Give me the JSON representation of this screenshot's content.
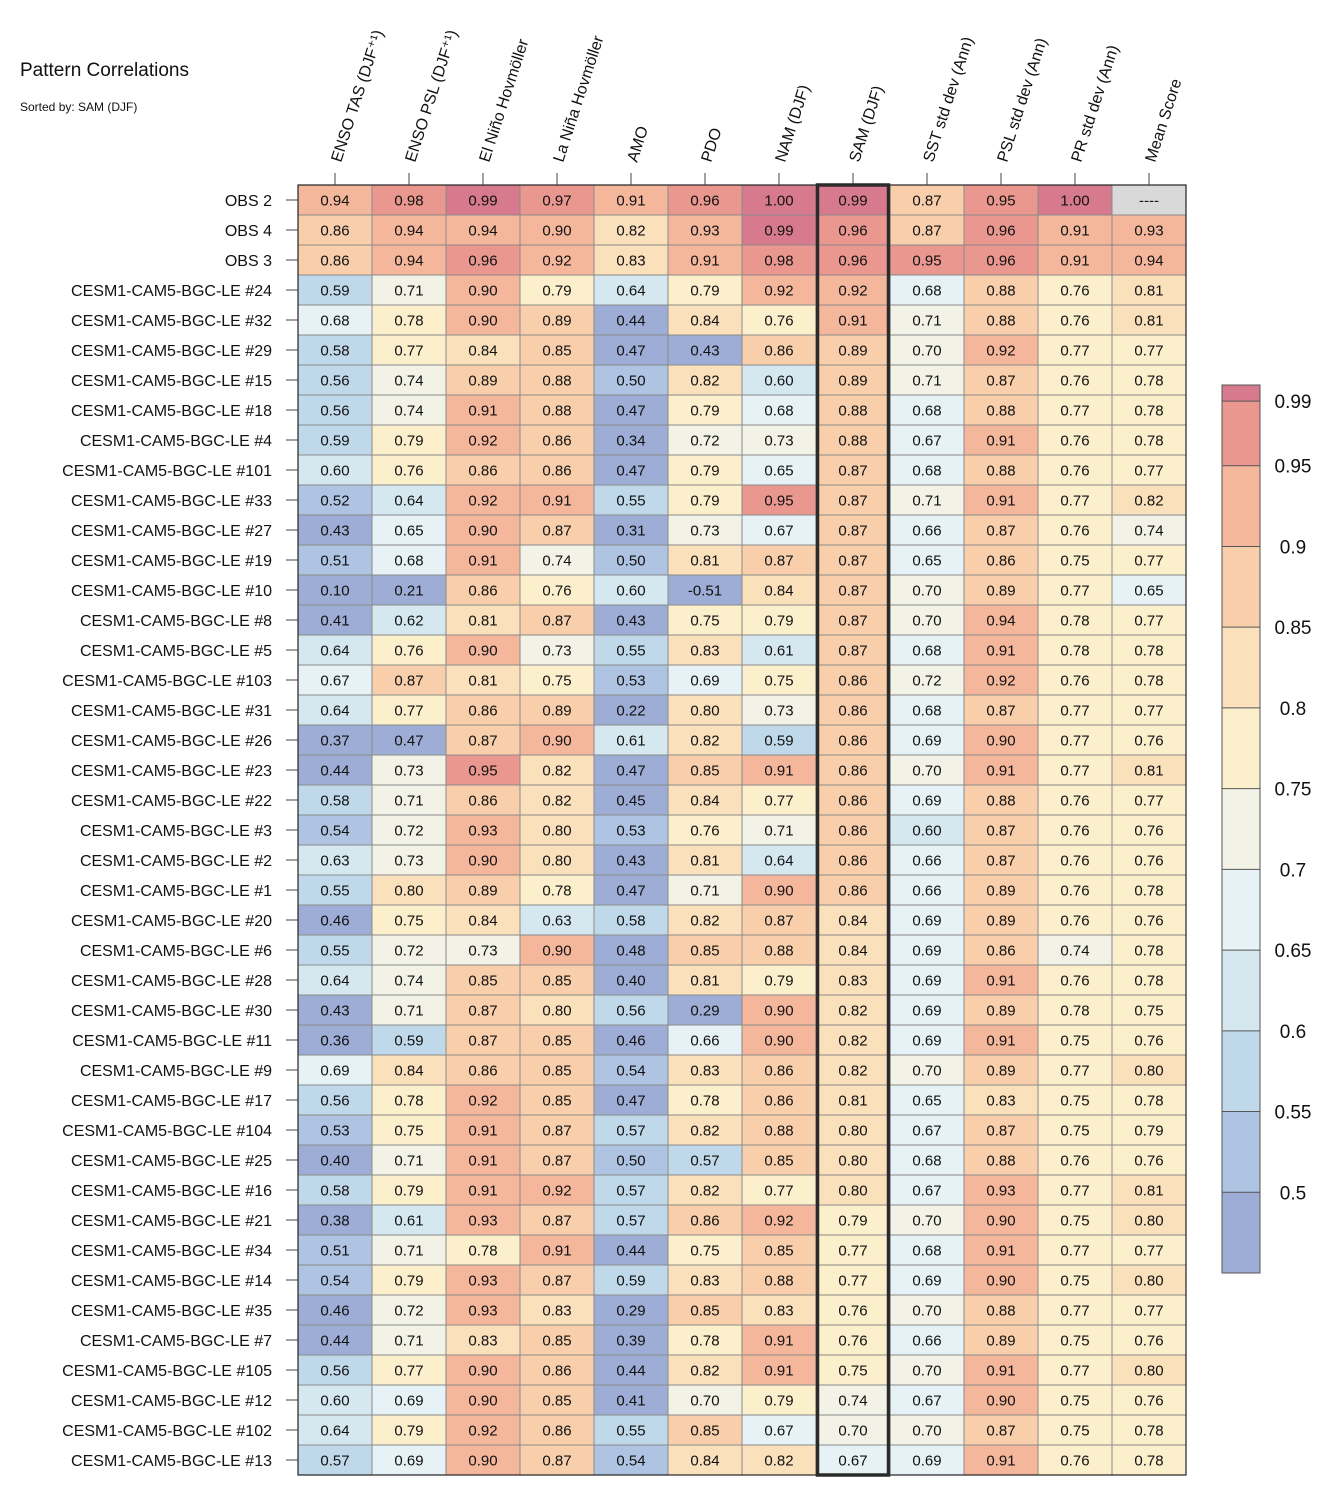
{
  "title": "Pattern Correlations",
  "subtitle": "Sorted by: SAM (DJF)",
  "chart_data": {
    "type": "heatmap",
    "title": "Pattern Correlations",
    "subtitle": "Sorted by: SAM (DJF)",
    "columns": [
      "ENSO TAS (DJF⁺¹)",
      "ENSO PSL (DJF⁺¹)",
      "El Niño Hovmöller",
      "La Niña Hovmöller",
      "AMO",
      "PDO",
      "NAM (DJF)",
      "SAM (DJF)",
      "SST std dev (Ann)",
      "PSL std dev (Ann)",
      "PR std dev (Ann)",
      "Mean Score"
    ],
    "highlighted_column": "SAM (DJF)",
    "missing_label": "----",
    "rows": [
      "OBS 2",
      "OBS 4",
      "OBS 3",
      "CESM1-CAM5-BGC-LE #24",
      "CESM1-CAM5-BGC-LE #32",
      "CESM1-CAM5-BGC-LE #29",
      "CESM1-CAM5-BGC-LE #15",
      "CESM1-CAM5-BGC-LE #18",
      "CESM1-CAM5-BGC-LE #4",
      "CESM1-CAM5-BGC-LE #101",
      "CESM1-CAM5-BGC-LE #33",
      "CESM1-CAM5-BGC-LE #27",
      "CESM1-CAM5-BGC-LE #19",
      "CESM1-CAM5-BGC-LE #10",
      "CESM1-CAM5-BGC-LE #8",
      "CESM1-CAM5-BGC-LE #5",
      "CESM1-CAM5-BGC-LE #103",
      "CESM1-CAM5-BGC-LE #31",
      "CESM1-CAM5-BGC-LE #26",
      "CESM1-CAM5-BGC-LE #23",
      "CESM1-CAM5-BGC-LE #22",
      "CESM1-CAM5-BGC-LE #3",
      "CESM1-CAM5-BGC-LE #2",
      "CESM1-CAM5-BGC-LE #1",
      "CESM1-CAM5-BGC-LE #20",
      "CESM1-CAM5-BGC-LE #6",
      "CESM1-CAM5-BGC-LE #28",
      "CESM1-CAM5-BGC-LE #30",
      "CESM1-CAM5-BGC-LE #11",
      "CESM1-CAM5-BGC-LE #9",
      "CESM1-CAM5-BGC-LE #17",
      "CESM1-CAM5-BGC-LE #104",
      "CESM1-CAM5-BGC-LE #25",
      "CESM1-CAM5-BGC-LE #16",
      "CESM1-CAM5-BGC-LE #21",
      "CESM1-CAM5-BGC-LE #34",
      "CESM1-CAM5-BGC-LE #14",
      "CESM1-CAM5-BGC-LE #35",
      "CESM1-CAM5-BGC-LE #7",
      "CESM1-CAM5-BGC-LE #105",
      "CESM1-CAM5-BGC-LE #12",
      "CESM1-CAM5-BGC-LE #102",
      "CESM1-CAM5-BGC-LE #13"
    ],
    "values": [
      [
        "0.94",
        "0.98",
        "0.99",
        "0.97",
        "0.91",
        "0.96",
        "1.00",
        "0.99",
        "0.87",
        "0.95",
        "1.00",
        null
      ],
      [
        "0.86",
        "0.94",
        "0.94",
        "0.90",
        "0.82",
        "0.93",
        "0.99",
        "0.96",
        "0.87",
        "0.96",
        "0.91",
        "0.93"
      ],
      [
        "0.86",
        "0.94",
        "0.96",
        "0.92",
        "0.83",
        "0.91",
        "0.98",
        "0.96",
        "0.95",
        "0.96",
        "0.91",
        "0.94"
      ],
      [
        "0.59",
        "0.71",
        "0.90",
        "0.79",
        "0.64",
        "0.79",
        "0.92",
        "0.92",
        "0.68",
        "0.88",
        "0.76",
        "0.81"
      ],
      [
        "0.68",
        "0.78",
        "0.90",
        "0.89",
        "0.44",
        "0.84",
        "0.76",
        "0.91",
        "0.71",
        "0.88",
        "0.76",
        "0.81"
      ],
      [
        "0.58",
        "0.77",
        "0.84",
        "0.85",
        "0.47",
        "0.43",
        "0.86",
        "0.89",
        "0.70",
        "0.92",
        "0.77",
        "0.77"
      ],
      [
        "0.56",
        "0.74",
        "0.89",
        "0.88",
        "0.50",
        "0.82",
        "0.60",
        "0.89",
        "0.71",
        "0.87",
        "0.76",
        "0.78"
      ],
      [
        "0.56",
        "0.74",
        "0.91",
        "0.88",
        "0.47",
        "0.79",
        "0.68",
        "0.88",
        "0.68",
        "0.88",
        "0.77",
        "0.78"
      ],
      [
        "0.59",
        "0.79",
        "0.92",
        "0.86",
        "0.34",
        "0.72",
        "0.73",
        "0.88",
        "0.67",
        "0.91",
        "0.76",
        "0.78"
      ],
      [
        "0.60",
        "0.76",
        "0.86",
        "0.86",
        "0.47",
        "0.79",
        "0.65",
        "0.87",
        "0.68",
        "0.88",
        "0.76",
        "0.77"
      ],
      [
        "0.52",
        "0.64",
        "0.92",
        "0.91",
        "0.55",
        "0.79",
        "0.95",
        "0.87",
        "0.71",
        "0.91",
        "0.77",
        "0.82"
      ],
      [
        "0.43",
        "0.65",
        "0.90",
        "0.87",
        "0.31",
        "0.73",
        "0.67",
        "0.87",
        "0.66",
        "0.87",
        "0.76",
        "0.74"
      ],
      [
        "0.51",
        "0.68",
        "0.91",
        "0.74",
        "0.50",
        "0.81",
        "0.87",
        "0.87",
        "0.65",
        "0.86",
        "0.75",
        "0.77"
      ],
      [
        "0.10",
        "0.21",
        "0.86",
        "0.76",
        "0.60",
        "-0.51",
        "0.84",
        "0.87",
        "0.70",
        "0.89",
        "0.77",
        "0.65"
      ],
      [
        "0.41",
        "0.62",
        "0.81",
        "0.87",
        "0.43",
        "0.75",
        "0.79",
        "0.87",
        "0.70",
        "0.94",
        "0.78",
        "0.77"
      ],
      [
        "0.64",
        "0.76",
        "0.90",
        "0.73",
        "0.55",
        "0.83",
        "0.61",
        "0.87",
        "0.68",
        "0.91",
        "0.78",
        "0.78"
      ],
      [
        "0.67",
        "0.87",
        "0.81",
        "0.75",
        "0.53",
        "0.69",
        "0.75",
        "0.86",
        "0.72",
        "0.92",
        "0.76",
        "0.78"
      ],
      [
        "0.64",
        "0.77",
        "0.86",
        "0.89",
        "0.22",
        "0.80",
        "0.73",
        "0.86",
        "0.68",
        "0.87",
        "0.77",
        "0.77"
      ],
      [
        "0.37",
        "0.47",
        "0.87",
        "0.90",
        "0.61",
        "0.82",
        "0.59",
        "0.86",
        "0.69",
        "0.90",
        "0.77",
        "0.76"
      ],
      [
        "0.44",
        "0.73",
        "0.95",
        "0.82",
        "0.47",
        "0.85",
        "0.91",
        "0.86",
        "0.70",
        "0.91",
        "0.77",
        "0.81"
      ],
      [
        "0.58",
        "0.71",
        "0.86",
        "0.82",
        "0.45",
        "0.84",
        "0.77",
        "0.86",
        "0.69",
        "0.88",
        "0.76",
        "0.77"
      ],
      [
        "0.54",
        "0.72",
        "0.93",
        "0.80",
        "0.53",
        "0.76",
        "0.71",
        "0.86",
        "0.60",
        "0.87",
        "0.76",
        "0.76"
      ],
      [
        "0.63",
        "0.73",
        "0.90",
        "0.80",
        "0.43",
        "0.81",
        "0.64",
        "0.86",
        "0.66",
        "0.87",
        "0.76",
        "0.76"
      ],
      [
        "0.55",
        "0.80",
        "0.89",
        "0.78",
        "0.47",
        "0.71",
        "0.90",
        "0.86",
        "0.66",
        "0.89",
        "0.76",
        "0.78"
      ],
      [
        "0.46",
        "0.75",
        "0.84",
        "0.63",
        "0.58",
        "0.82",
        "0.87",
        "0.84",
        "0.69",
        "0.89",
        "0.76",
        "0.76"
      ],
      [
        "0.55",
        "0.72",
        "0.73",
        "0.90",
        "0.48",
        "0.85",
        "0.88",
        "0.84",
        "0.69",
        "0.86",
        "0.74",
        "0.78"
      ],
      [
        "0.64",
        "0.74",
        "0.85",
        "0.85",
        "0.40",
        "0.81",
        "0.79",
        "0.83",
        "0.69",
        "0.91",
        "0.76",
        "0.78"
      ],
      [
        "0.43",
        "0.71",
        "0.87",
        "0.80",
        "0.56",
        "0.29",
        "0.90",
        "0.82",
        "0.69",
        "0.89",
        "0.78",
        "0.75"
      ],
      [
        "0.36",
        "0.59",
        "0.87",
        "0.85",
        "0.46",
        "0.66",
        "0.90",
        "0.82",
        "0.69",
        "0.91",
        "0.75",
        "0.76"
      ],
      [
        "0.69",
        "0.84",
        "0.86",
        "0.85",
        "0.54",
        "0.83",
        "0.86",
        "0.82",
        "0.70",
        "0.89",
        "0.77",
        "0.80"
      ],
      [
        "0.56",
        "0.78",
        "0.92",
        "0.85",
        "0.47",
        "0.78",
        "0.86",
        "0.81",
        "0.65",
        "0.83",
        "0.75",
        "0.78"
      ],
      [
        "0.53",
        "0.75",
        "0.91",
        "0.87",
        "0.57",
        "0.82",
        "0.88",
        "0.80",
        "0.67",
        "0.87",
        "0.75",
        "0.79"
      ],
      [
        "0.40",
        "0.71",
        "0.91",
        "0.87",
        "0.50",
        "0.57",
        "0.85",
        "0.80",
        "0.68",
        "0.88",
        "0.76",
        "0.76"
      ],
      [
        "0.58",
        "0.79",
        "0.91",
        "0.92",
        "0.57",
        "0.82",
        "0.77",
        "0.80",
        "0.67",
        "0.93",
        "0.77",
        "0.81"
      ],
      [
        "0.38",
        "0.61",
        "0.93",
        "0.87",
        "0.57",
        "0.86",
        "0.92",
        "0.79",
        "0.70",
        "0.90",
        "0.75",
        "0.80"
      ],
      [
        "0.51",
        "0.71",
        "0.78",
        "0.91",
        "0.44",
        "0.75",
        "0.85",
        "0.77",
        "0.68",
        "0.91",
        "0.77",
        "0.77"
      ],
      [
        "0.54",
        "0.79",
        "0.93",
        "0.87",
        "0.59",
        "0.83",
        "0.88",
        "0.77",
        "0.69",
        "0.90",
        "0.75",
        "0.80"
      ],
      [
        "0.46",
        "0.72",
        "0.93",
        "0.83",
        "0.29",
        "0.85",
        "0.83",
        "0.76",
        "0.70",
        "0.88",
        "0.77",
        "0.77"
      ],
      [
        "0.44",
        "0.71",
        "0.83",
        "0.85",
        "0.39",
        "0.78",
        "0.91",
        "0.76",
        "0.66",
        "0.89",
        "0.75",
        "0.76"
      ],
      [
        "0.56",
        "0.77",
        "0.90",
        "0.86",
        "0.44",
        "0.82",
        "0.91",
        "0.75",
        "0.70",
        "0.91",
        "0.77",
        "0.80"
      ],
      [
        "0.60",
        "0.69",
        "0.90",
        "0.85",
        "0.41",
        "0.70",
        "0.79",
        "0.74",
        "0.67",
        "0.90",
        "0.75",
        "0.76"
      ],
      [
        "0.64",
        "0.79",
        "0.92",
        "0.86",
        "0.55",
        "0.85",
        "0.67",
        "0.70",
        "0.70",
        "0.87",
        "0.75",
        "0.78"
      ],
      [
        "0.57",
        "0.69",
        "0.90",
        "0.87",
        "0.54",
        "0.84",
        "0.82",
        "0.67",
        "0.69",
        "0.91",
        "0.76",
        "0.78"
      ]
    ],
    "colorbar": {
      "bounds": [
        0.45,
        0.5,
        0.55,
        0.6,
        0.65,
        0.7,
        0.75,
        0.8,
        0.85,
        0.9,
        0.95,
        0.99,
        1.0
      ],
      "tick_labels": [
        "0.5",
        "0.55",
        "0.6",
        "0.65",
        "0.7",
        "0.75",
        "0.8",
        "0.85",
        "0.9",
        "0.95",
        "0.99"
      ],
      "tick_values": [
        0.5,
        0.55,
        0.6,
        0.65,
        0.7,
        0.75,
        0.8,
        0.85,
        0.9,
        0.95,
        0.99
      ],
      "colors": [
        "#9eadd5",
        "#aec4e2",
        "#c0d9ea",
        "#d5e8f0",
        "#e6f2f5",
        "#f2f2e6",
        "#fcefcc",
        "#fbe0bc",
        "#f9cfab",
        "#f5b79c",
        "#e9978f",
        "#d87a8d"
      ],
      "missing_color": "#d9d9d9"
    }
  }
}
